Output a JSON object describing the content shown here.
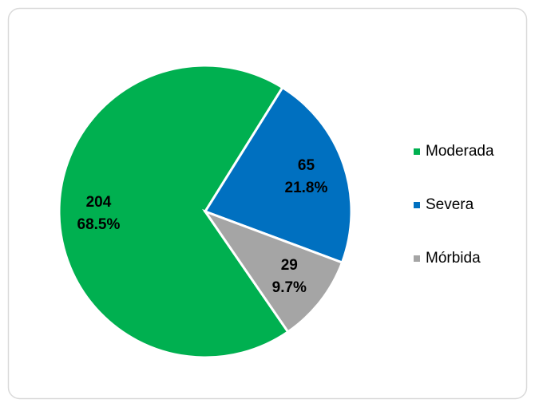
{
  "chart_data": {
    "type": "pie",
    "categories": [
      "Moderada",
      "Severa",
      "Mórbida"
    ],
    "values": [
      204,
      65,
      29
    ],
    "percent_labels": [
      "68.5%",
      "21.8%",
      "9.7%"
    ],
    "colors": [
      "#00b050",
      "#0070c0",
      "#a5a5a5"
    ],
    "legend": "right"
  }
}
